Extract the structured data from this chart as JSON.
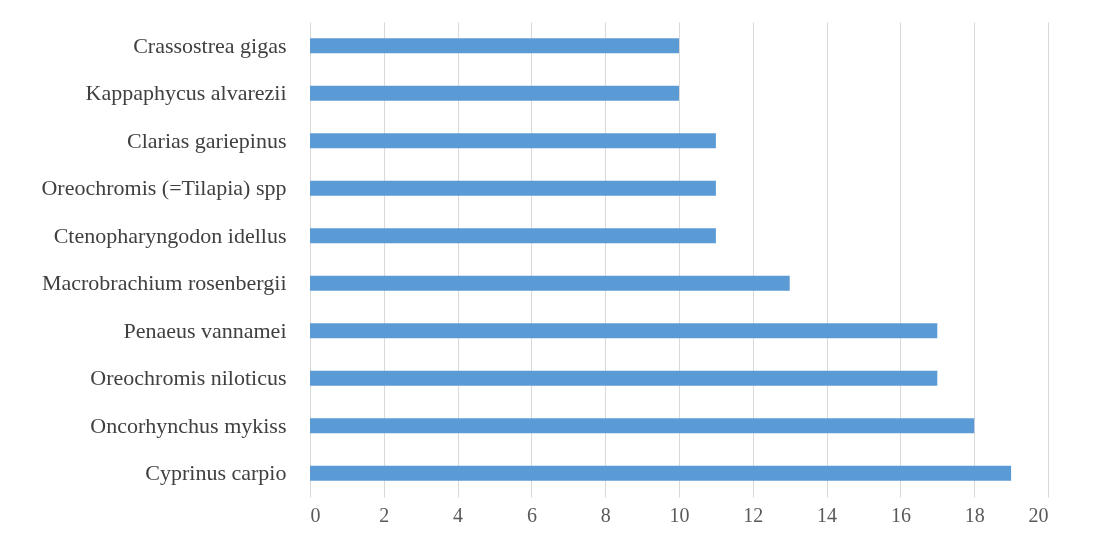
{
  "chart_data": {
    "type": "bar",
    "orientation": "horizontal",
    "categories": [
      "Crassostrea gigas",
      "Kappaphycus alvarezii",
      "Clarias gariepinus",
      "Oreochromis (=Tilapia) spp",
      "Ctenopharyngodon idellus",
      "Macrobrachium rosenbergii",
      "Penaeus vannamei",
      "Oreochromis niloticus",
      "Oncorhynchus mykiss",
      "Cyprinus carpio"
    ],
    "values": [
      10,
      10,
      11,
      11,
      11,
      13,
      17,
      17,
      18,
      19
    ],
    "color": "#5b9bd5",
    "xlim": [
      0,
      20
    ],
    "xticks": [
      0,
      2,
      4,
      6,
      8,
      10,
      12,
      14,
      16,
      18,
      20
    ],
    "grid": "x"
  }
}
